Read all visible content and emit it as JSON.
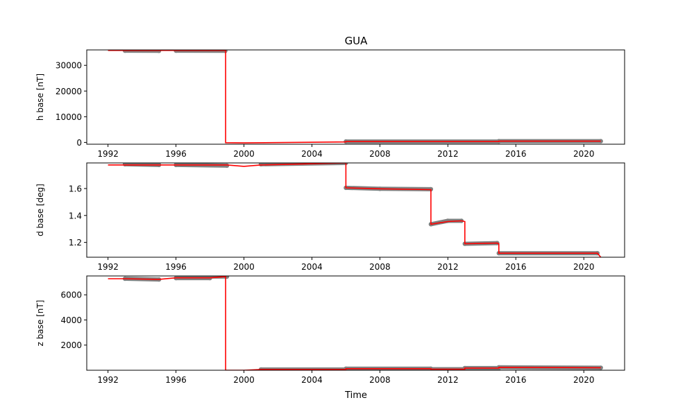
{
  "figure": {
    "title": "GUA",
    "xlabel": "Time"
  },
  "colors": {
    "observed_markers": "#808080",
    "baseline_line": "#ff0000",
    "axes": "#000000",
    "background": "#ffffff"
  },
  "chart_data": [
    {
      "type": "line",
      "ylabel": "h base [nT]",
      "xlim": [
        1990.75,
        2022.4
      ],
      "ylim": [
        -700,
        36000
      ],
      "x_ticks": [
        "1992",
        "1996",
        "2000",
        "2004",
        "2008",
        "2012",
        "2016",
        "2020"
      ],
      "y_ticks": [
        "0",
        "10000",
        "20000",
        "30000"
      ],
      "grid": false,
      "series": [
        {
          "style": "markers",
          "segments": [
            [
              [
                1993.0,
                35700
              ],
              [
                1995.0,
                35650
              ]
            ],
            [
              [
                1996.0,
                35700
              ],
              [
                1998.9,
                35650
              ]
            ],
            [
              [
                2006.0,
                350
              ],
              [
                2015.0,
                350
              ]
            ],
            [
              [
                2015.0,
                500
              ],
              [
                2021.0,
                500
              ]
            ]
          ]
        },
        {
          "style": "step",
          "points": [
            [
              1992.0,
              35800
            ],
            [
              1998.92,
              35800
            ],
            [
              1998.92,
              -100
            ],
            [
              2000.0,
              -200
            ],
            [
              2006.0,
              200
            ],
            [
              2006.0,
              350
            ],
            [
              2015.0,
              350
            ],
            [
              2015.0,
              480
            ],
            [
              2021.0,
              480
            ]
          ]
        }
      ]
    },
    {
      "type": "line",
      "ylabel": "d base [deg]",
      "xlim": [
        1990.75,
        2022.4
      ],
      "ylim": [
        1.09,
        1.79
      ],
      "x_ticks": [
        "1992",
        "1996",
        "2000",
        "2004",
        "2008",
        "2012",
        "2016",
        "2020"
      ],
      "y_ticks": [
        "1.2",
        "1.4",
        "1.6"
      ],
      "grid": false,
      "series": [
        {
          "style": "markers",
          "segments": [
            [
              [
                1993.0,
                1.78
              ],
              [
                1995.0,
                1.775
              ]
            ],
            [
              [
                1996.0,
                1.775
              ],
              [
                1999.0,
                1.77
              ]
            ],
            [
              [
                2001.0,
                1.78
              ],
              [
                2006.0,
                1.79
              ]
            ],
            [
              [
                2006.0,
                1.605
              ],
              [
                2008.0,
                1.598
              ],
              [
                2011.0,
                1.595
              ]
            ],
            [
              [
                2011.0,
                1.335
              ],
              [
                2012.0,
                1.36
              ],
              [
                2012.8,
                1.36
              ]
            ],
            [
              [
                2013.0,
                1.19
              ],
              [
                2014.9,
                1.195
              ]
            ],
            [
              [
                2015.0,
                1.12
              ],
              [
                2020.8,
                1.12
              ]
            ]
          ]
        },
        {
          "style": "step",
          "points": [
            [
              1992.0,
              1.775
            ],
            [
              1999.0,
              1.775
            ],
            [
              2000.0,
              1.765
            ],
            [
              2001.0,
              1.775
            ],
            [
              2006.0,
              1.79
            ],
            [
              2006.0,
              1.605
            ],
            [
              2008.0,
              1.598
            ],
            [
              2011.0,
              1.592
            ],
            [
              2011.0,
              1.335
            ],
            [
              2012.0,
              1.355
            ],
            [
              2012.8,
              1.36
            ],
            [
              2013.0,
              1.355
            ],
            [
              2013.0,
              1.19
            ],
            [
              2014.9,
              1.195
            ],
            [
              2015.0,
              1.19
            ],
            [
              2015.0,
              1.12
            ],
            [
              2020.8,
              1.12
            ],
            [
              2021.0,
              1.09
            ]
          ]
        }
      ]
    },
    {
      "type": "line",
      "ylabel": "z base [nT]",
      "xlim": [
        1990.75,
        2022.4
      ],
      "ylim": [
        0,
        7500
      ],
      "x_ticks": [
        "1992",
        "1996",
        "2000",
        "2004",
        "2008",
        "2012",
        "2016",
        "2020"
      ],
      "y_ticks": [
        "2000",
        "4000",
        "6000"
      ],
      "grid": false,
      "series": [
        {
          "style": "markers",
          "segments": [
            [
              [
                1993.0,
                7280
              ],
              [
                1995.0,
                7220
              ]
            ],
            [
              [
                1996.0,
                7330
              ],
              [
                1998.0,
                7330
              ]
            ],
            [
              [
                1998.0,
                7450
              ],
              [
                1999.0,
                7450
              ]
            ],
            [
              [
                2001.0,
                60
              ],
              [
                2006.0,
                60
              ]
            ],
            [
              [
                2006.0,
                120
              ],
              [
                2011.0,
                120
              ]
            ],
            [
              [
                2011.0,
                80
              ],
              [
                2013.0,
                80
              ]
            ],
            [
              [
                2013.0,
                170
              ],
              [
                2015.0,
                170
              ]
            ],
            [
              [
                2015.0,
                230
              ],
              [
                2021.0,
                200
              ]
            ]
          ]
        },
        {
          "style": "step",
          "points": [
            [
              1992.0,
              7280
            ],
            [
              1993.0,
              7280
            ],
            [
              1995.0,
              7230
            ],
            [
              1996.0,
              7350
            ],
            [
              1998.0,
              7350
            ],
            [
              1998.92,
              7450
            ],
            [
              1998.92,
              0
            ],
            [
              2000.0,
              0
            ],
            [
              2001.0,
              60
            ],
            [
              2006.0,
              60
            ],
            [
              2006.0,
              120
            ],
            [
              2011.0,
              120
            ],
            [
              2011.0,
              80
            ],
            [
              2013.0,
              80
            ],
            [
              2013.0,
              170
            ],
            [
              2015.0,
              170
            ],
            [
              2015.0,
              230
            ],
            [
              2021.0,
              200
            ]
          ]
        }
      ]
    }
  ]
}
